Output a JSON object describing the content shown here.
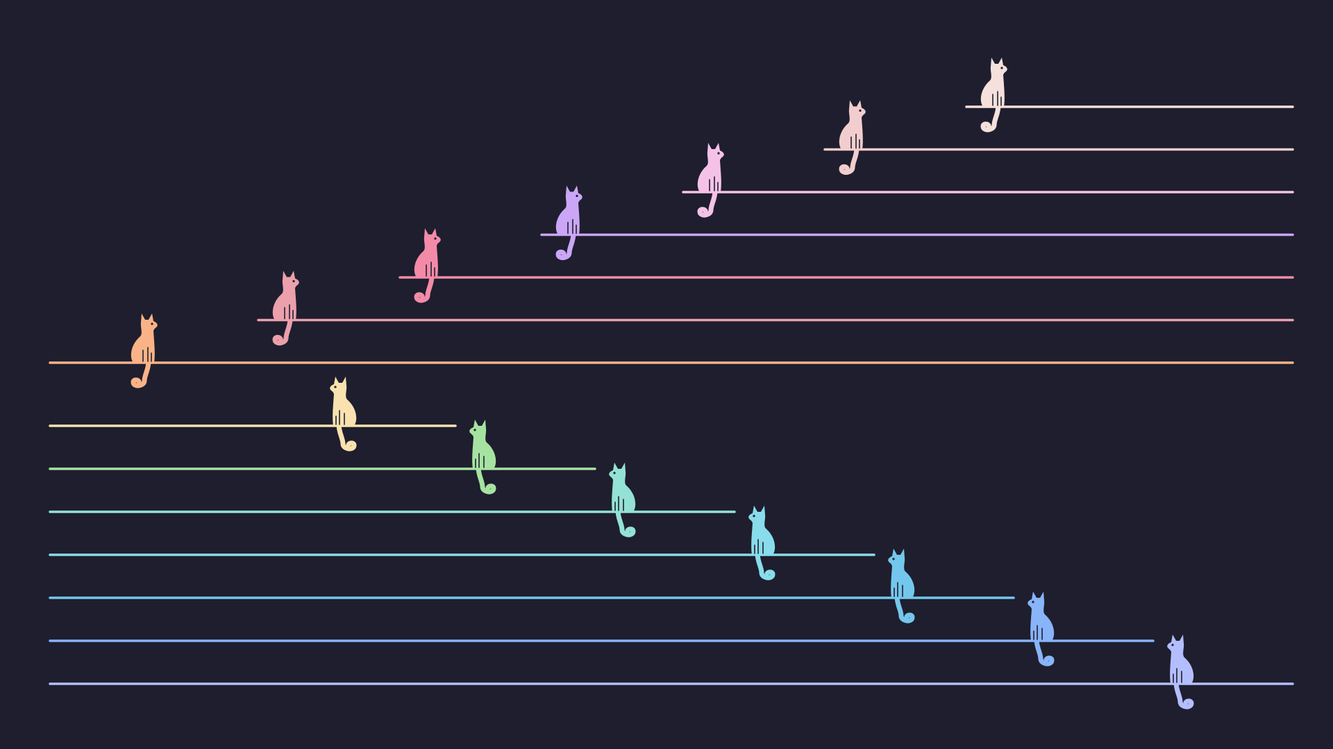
{
  "background_color": "#1e1e2e",
  "top_group": {
    "direction": "ascending",
    "rows": [
      {
        "color": "#fab387"
      },
      {
        "color": "#eba0ac"
      },
      {
        "color": "#f38ba8"
      },
      {
        "color": "#cba6f7"
      },
      {
        "color": "#f5c2e7"
      },
      {
        "color": "#f2cdcd"
      },
      {
        "color": "#f5e0dc"
      }
    ]
  },
  "bottom_group": {
    "direction": "descending",
    "rows": [
      {
        "color": "#f9e2af"
      },
      {
        "color": "#a6e3a1"
      },
      {
        "color": "#94e2d5"
      },
      {
        "color": "#89dceb"
      },
      {
        "color": "#74c7ec"
      },
      {
        "color": "#89b4fa"
      },
      {
        "color": "#b4befe"
      }
    ]
  },
  "icons": {
    "figure": "cat-icon",
    "line": "perch-line"
  }
}
